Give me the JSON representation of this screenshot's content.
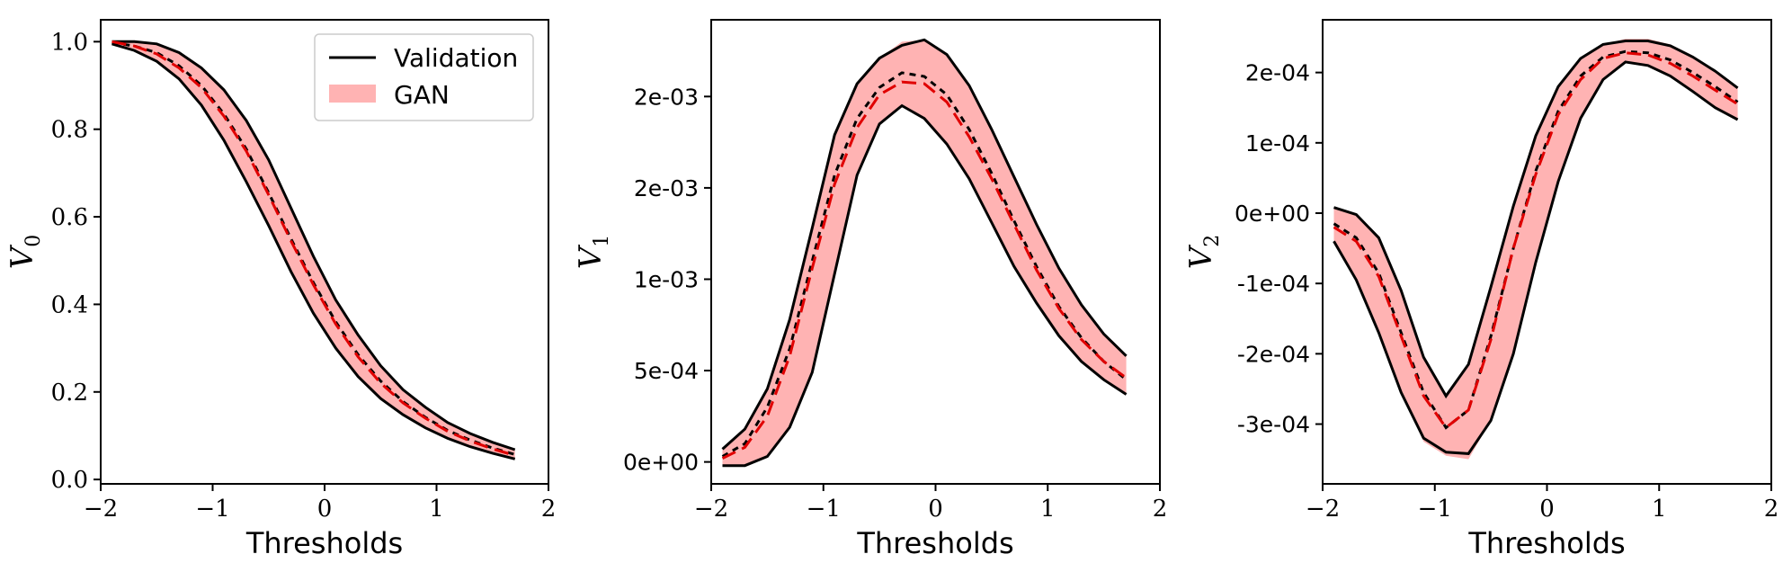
{
  "chart_data": [
    {
      "type": "line",
      "xlabel": "Thresholds",
      "ylabel_main": "V",
      "ylabel_sub": "0",
      "xlim": [
        -2,
        2
      ],
      "ylim": [
        -0.01,
        1.05
      ],
      "xticks": [
        -2,
        -1,
        0,
        1,
        2
      ],
      "xtick_labels": [
        "−2",
        "−1",
        "0",
        "1",
        "2"
      ],
      "yticks": [
        0,
        0.2,
        0.4,
        0.6,
        0.8,
        1.0
      ],
      "ytick_labels": [
        "0.0",
        "0.2",
        "0.4",
        "0.6",
        "0.8",
        "1.0"
      ],
      "ytick_style": "serif",
      "legend": {
        "position": "top-right",
        "validation_label": "Validation",
        "gan_label": "GAN"
      },
      "x": [
        -1.9,
        -1.7,
        -1.5,
        -1.3,
        -1.1,
        -0.9,
        -0.7,
        -0.5,
        -0.3,
        -0.1,
        0.1,
        0.3,
        0.5,
        0.7,
        0.9,
        1.1,
        1.3,
        1.5,
        1.7
      ],
      "validation_upper": [
        1.0,
        1.0,
        0.995,
        0.975,
        0.94,
        0.89,
        0.82,
        0.73,
        0.62,
        0.51,
        0.41,
        0.33,
        0.26,
        0.205,
        0.165,
        0.13,
        0.105,
        0.085,
        0.068
      ],
      "validation_mean": [
        0.998,
        0.99,
        0.975,
        0.945,
        0.9,
        0.835,
        0.755,
        0.655,
        0.55,
        0.45,
        0.36,
        0.285,
        0.225,
        0.178,
        0.142,
        0.112,
        0.09,
        0.072,
        0.057
      ],
      "validation_lower": [
        0.995,
        0.98,
        0.955,
        0.915,
        0.855,
        0.775,
        0.68,
        0.58,
        0.475,
        0.38,
        0.3,
        0.235,
        0.185,
        0.148,
        0.118,
        0.094,
        0.075,
        0.06,
        0.047
      ],
      "gan_mean": [
        1.0,
        0.99,
        0.972,
        0.94,
        0.895,
        0.83,
        0.75,
        0.65,
        0.545,
        0.445,
        0.355,
        0.28,
        0.22,
        0.175,
        0.14,
        0.11,
        0.088,
        0.07,
        0.055
      ],
      "gan_upper": [
        1.0,
        1.0,
        0.995,
        0.975,
        0.94,
        0.89,
        0.82,
        0.73,
        0.62,
        0.51,
        0.41,
        0.33,
        0.26,
        0.205,
        0.165,
        0.13,
        0.105,
        0.085,
        0.068
      ],
      "gan_lower": [
        0.995,
        0.98,
        0.955,
        0.915,
        0.855,
        0.775,
        0.68,
        0.58,
        0.475,
        0.38,
        0.3,
        0.235,
        0.185,
        0.148,
        0.118,
        0.094,
        0.075,
        0.06,
        0.047
      ]
    },
    {
      "type": "line",
      "xlabel": "Thresholds",
      "ylabel_main": "V",
      "ylabel_sub": "1",
      "xlim": [
        -2,
        2
      ],
      "ylim": [
        -0.00012,
        0.00242
      ],
      "xticks": [
        -2,
        -1,
        0,
        1,
        2
      ],
      "xtick_labels": [
        "−2",
        "−1",
        "0",
        "1",
        "2"
      ],
      "yticks": [
        0,
        0.0005,
        0.001,
        0.0015,
        0.002
      ],
      "ytick_labels": [
        "0e+00",
        "5e-04",
        "1e-03",
        "2e-03",
        "2e-03"
      ],
      "ytick_style": "sans",
      "x": [
        -1.9,
        -1.7,
        -1.5,
        -1.3,
        -1.1,
        -0.9,
        -0.7,
        -0.5,
        -0.3,
        -0.1,
        0.1,
        0.3,
        0.5,
        0.7,
        0.9,
        1.1,
        1.3,
        1.5,
        1.7
      ],
      "validation_upper": [
        7e-05,
        0.00018,
        0.0004,
        0.00078,
        0.00128,
        0.00179,
        0.00207,
        0.00221,
        0.00228,
        0.00231,
        0.00223,
        0.00206,
        0.00182,
        0.00156,
        0.0013,
        0.00106,
        0.00086,
        0.0007,
        0.00058
      ],
      "validation_mean": [
        3e-05,
        0.0001,
        0.0003,
        0.00062,
        0.0011,
        0.00157,
        0.00188,
        0.00205,
        0.00213,
        0.00211,
        0.00201,
        0.00182,
        0.00158,
        0.00132,
        0.00107,
        0.00085,
        0.00068,
        0.00055,
        0.00045
      ],
      "validation_lower": [
        -2e-05,
        -2e-05,
        3e-05,
        0.00019,
        0.00049,
        0.00103,
        0.00157,
        0.00185,
        0.00195,
        0.00188,
        0.00174,
        0.00155,
        0.00131,
        0.00107,
        0.00087,
        0.00069,
        0.00055,
        0.00045,
        0.00037
      ],
      "gan_mean": [
        2e-05,
        8e-05,
        0.00025,
        0.00058,
        0.00106,
        0.00152,
        0.00183,
        0.00201,
        0.00208,
        0.00207,
        0.00197,
        0.00178,
        0.00155,
        0.0013,
        0.00105,
        0.00084,
        0.00067,
        0.00055,
        0.00046
      ],
      "gan_upper": [
        7e-05,
        0.00018,
        0.0004,
        0.00078,
        0.00128,
        0.00179,
        0.00207,
        0.00221,
        0.0023,
        0.00231,
        0.00223,
        0.00206,
        0.00182,
        0.00156,
        0.0013,
        0.00106,
        0.00086,
        0.0007,
        0.00058
      ],
      "gan_lower": [
        -2e-05,
        -2e-05,
        3e-05,
        0.00019,
        0.00049,
        0.00103,
        0.00157,
        0.00185,
        0.00195,
        0.00188,
        0.00174,
        0.00155,
        0.00131,
        0.00107,
        0.00087,
        0.00069,
        0.00055,
        0.00045,
        0.00037
      ]
    },
    {
      "type": "line",
      "xlabel": "Thresholds",
      "ylabel_main": "V",
      "ylabel_sub": "2",
      "xlim": [
        -2,
        2
      ],
      "ylim": [
        -0.000385,
        0.000275
      ],
      "xticks": [
        -2,
        -1,
        0,
        1,
        2
      ],
      "xtick_labels": [
        "−2",
        "−1",
        "0",
        "1",
        "2"
      ],
      "yticks": [
        -0.0003,
        -0.0002,
        -0.0001,
        0,
        0.0001,
        0.0002
      ],
      "ytick_labels": [
        "-3e-04",
        "-2e-04",
        "-1e-04",
        "0e+00",
        "1e-04",
        "2e-04"
      ],
      "ytick_style": "sans",
      "x": [
        -1.9,
        -1.7,
        -1.5,
        -1.3,
        -1.1,
        -0.9,
        -0.7,
        -0.5,
        -0.3,
        -0.1,
        0.1,
        0.3,
        0.5,
        0.7,
        0.9,
        1.1,
        1.3,
        1.5,
        1.7
      ],
      "validation_upper": [
        8e-06,
        -2e-06,
        -3.5e-05,
        -0.00011,
        -0.000205,
        -0.00026,
        -0.000215,
        -0.000105,
        1e-05,
        0.00011,
        0.00018,
        0.00022,
        0.00024,
        0.000245,
        0.000245,
        0.000238,
        0.000222,
        0.000202,
        0.000178
      ],
      "validation_mean": [
        -1.5e-05,
        -3.5e-05,
        -8.5e-05,
        -0.00017,
        -0.000255,
        -0.000305,
        -0.00028,
        -0.000175,
        -5e-05,
        6e-05,
        0.000145,
        0.000195,
        0.000222,
        0.00023,
        0.000228,
        0.000218,
        0.0002,
        0.00018,
        0.000158
      ],
      "validation_lower": [
        -4e-05,
        -9.5e-05,
        -0.00017,
        -0.000255,
        -0.00032,
        -0.00034,
        -0.000342,
        -0.000295,
        -0.0002,
        -7e-05,
        4.5e-05,
        0.000135,
        0.00019,
        0.000215,
        0.00021,
        0.000195,
        0.000173,
        0.00015,
        0.000133
      ],
      "gan_mean": [
        -2e-05,
        -4e-05,
        -9e-05,
        -0.000175,
        -0.00026,
        -0.000305,
        -0.00028,
        -0.00018,
        -5e-05,
        5.5e-05,
        0.00014,
        0.00019,
        0.00022,
        0.000228,
        0.000225,
        0.000213,
        0.000195,
        0.000175,
        0.000155
      ],
      "gan_upper": [
        8e-06,
        -2e-06,
        -3.5e-05,
        -0.00011,
        -0.000205,
        -0.00026,
        -0.000215,
        -0.000105,
        1e-05,
        0.00011,
        0.00018,
        0.00022,
        0.00024,
        0.000248,
        0.000248,
        0.00024,
        0.000224,
        0.000203,
        0.000178
      ],
      "gan_lower": [
        -4e-05,
        -9.5e-05,
        -0.00017,
        -0.000255,
        -0.000325,
        -0.000345,
        -0.00035,
        -0.000295,
        -0.0002,
        -7e-05,
        4.5e-05,
        0.000135,
        0.00019,
        0.000215,
        0.00021,
        0.000195,
        0.000173,
        0.00015,
        0.000133
      ]
    }
  ],
  "colors": {
    "validation": "#000000",
    "gan_band": "#ffb3b3",
    "gan_mean": "#e00000",
    "axes": "#000000"
  }
}
